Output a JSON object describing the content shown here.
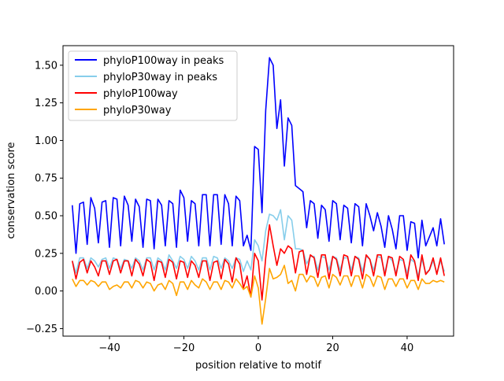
{
  "chart_data": {
    "type": "line",
    "title": "",
    "xlabel": "position relative to motif",
    "ylabel": "conservation score",
    "xlim": [
      -52.5,
      52.5
    ],
    "ylim": [
      -0.3,
      1.63
    ],
    "xticks": [
      -40,
      -20,
      0,
      20,
      40
    ],
    "xtick_labels": [
      "−40",
      "−20",
      "0",
      "20",
      "40"
    ],
    "yticks": [
      -0.25,
      0.0,
      0.25,
      0.5,
      0.75,
      1.0,
      1.25,
      1.5
    ],
    "ytick_labels": [
      "−0.25",
      "0.00",
      "0.25",
      "0.50",
      "0.75",
      "1.00",
      "1.25",
      "1.50"
    ],
    "legend_position": "top-left",
    "x": [
      -50,
      -49,
      -48,
      -47,
      -46,
      -45,
      -44,
      -43,
      -42,
      -41,
      -40,
      -39,
      -38,
      -37,
      -36,
      -35,
      -34,
      -33,
      -32,
      -31,
      -30,
      -29,
      -28,
      -27,
      -26,
      -25,
      -24,
      -23,
      -22,
      -21,
      -20,
      -19,
      -18,
      -17,
      -16,
      -15,
      -14,
      -13,
      -12,
      -11,
      -10,
      -9,
      -8,
      -7,
      -6,
      -5,
      -4,
      -3,
      -2,
      -1,
      0,
      1,
      2,
      3,
      4,
      5,
      6,
      7,
      8,
      9,
      10,
      11,
      12,
      13,
      14,
      15,
      16,
      17,
      18,
      19,
      20,
      21,
      22,
      23,
      24,
      25,
      26,
      27,
      28,
      29,
      30,
      31,
      32,
      33,
      34,
      35,
      36,
      37,
      38,
      39,
      40,
      41,
      42,
      43,
      44,
      45,
      46,
      47,
      48,
      49,
      50
    ],
    "series": [
      {
        "name": "phyloP100way in peaks",
        "color": "#0000ff",
        "values": [
          0.57,
          0.25,
          0.58,
          0.59,
          0.31,
          0.62,
          0.55,
          0.32,
          0.59,
          0.6,
          0.29,
          0.62,
          0.61,
          0.3,
          0.63,
          0.57,
          0.33,
          0.61,
          0.56,
          0.29,
          0.61,
          0.6,
          0.28,
          0.61,
          0.57,
          0.3,
          0.6,
          0.58,
          0.29,
          0.67,
          0.62,
          0.33,
          0.6,
          0.58,
          0.3,
          0.64,
          0.64,
          0.3,
          0.64,
          0.64,
          0.31,
          0.64,
          0.58,
          0.3,
          0.63,
          0.6,
          0.3,
          0.37,
          0.27,
          0.96,
          0.94,
          0.52,
          1.2,
          1.55,
          1.5,
          1.08,
          1.27,
          0.83,
          1.15,
          1.1,
          0.7,
          0.68,
          0.66,
          0.42,
          0.6,
          0.58,
          0.35,
          0.57,
          0.54,
          0.33,
          0.6,
          0.58,
          0.34,
          0.57,
          0.55,
          0.32,
          0.58,
          0.56,
          0.3,
          0.58,
          0.5,
          0.4,
          0.52,
          0.43,
          0.29,
          0.5,
          0.41,
          0.28,
          0.5,
          0.5,
          0.27,
          0.46,
          0.45,
          0.22,
          0.47,
          0.3,
          0.36,
          0.42,
          0.3,
          0.48,
          0.31
        ]
      },
      {
        "name": "phyloP30way in peaks",
        "color": "#87ceeb",
        "values": [
          0.2,
          0.12,
          0.22,
          0.22,
          0.15,
          0.22,
          0.2,
          0.16,
          0.21,
          0.22,
          0.15,
          0.22,
          0.21,
          0.15,
          0.21,
          0.2,
          0.15,
          0.22,
          0.2,
          0.14,
          0.22,
          0.22,
          0.14,
          0.22,
          0.2,
          0.14,
          0.24,
          0.2,
          0.15,
          0.23,
          0.21,
          0.15,
          0.23,
          0.2,
          0.14,
          0.22,
          0.22,
          0.14,
          0.23,
          0.22,
          0.15,
          0.22,
          0.2,
          0.15,
          0.22,
          0.21,
          0.13,
          0.2,
          0.14,
          0.34,
          0.3,
          0.2,
          0.4,
          0.51,
          0.5,
          0.47,
          0.54,
          0.34,
          0.5,
          0.47,
          0.28,
          0.28,
          0.27,
          0.18,
          0.23,
          0.23,
          0.14,
          0.23,
          0.22,
          0.14,
          0.23,
          0.22,
          0.14,
          0.22,
          0.22,
          0.14,
          0.23,
          0.22,
          0.13,
          0.23,
          0.21,
          0.14,
          0.23,
          0.22,
          0.12,
          0.23,
          0.2,
          0.12,
          0.21,
          0.2,
          0.12,
          0.21,
          0.19,
          0.1,
          0.21,
          0.12,
          0.14,
          0.2,
          0.12,
          0.2,
          0.13
        ]
      },
      {
        "name": "phyloP100way",
        "color": "#ff0000",
        "values": [
          0.2,
          0.08,
          0.19,
          0.21,
          0.12,
          0.2,
          0.16,
          0.1,
          0.2,
          0.2,
          0.11,
          0.2,
          0.21,
          0.12,
          0.2,
          0.2,
          0.1,
          0.21,
          0.18,
          0.1,
          0.21,
          0.19,
          0.07,
          0.2,
          0.19,
          0.09,
          0.21,
          0.19,
          0.08,
          0.2,
          0.19,
          0.09,
          0.2,
          0.17,
          0.09,
          0.2,
          0.2,
          0.07,
          0.19,
          0.2,
          0.08,
          0.21,
          0.18,
          0.06,
          0.22,
          0.18,
          0.02,
          0.1,
          -0.04,
          0.25,
          0.2,
          -0.06,
          0.22,
          0.44,
          0.3,
          0.17,
          0.28,
          0.25,
          0.3,
          0.28,
          0.12,
          0.26,
          0.27,
          0.11,
          0.24,
          0.22,
          0.09,
          0.24,
          0.24,
          0.08,
          0.23,
          0.21,
          0.1,
          0.24,
          0.23,
          0.1,
          0.23,
          0.21,
          0.08,
          0.24,
          0.21,
          0.1,
          0.24,
          0.24,
          0.1,
          0.23,
          0.22,
          0.1,
          0.23,
          0.21,
          0.08,
          0.24,
          0.2,
          0.07,
          0.24,
          0.11,
          0.14,
          0.22,
          0.11,
          0.22,
          0.1
        ]
      },
      {
        "name": "phyloP30way",
        "color": "#ffa500",
        "values": [
          0.08,
          0.03,
          0.07,
          0.07,
          0.04,
          0.07,
          0.06,
          0.03,
          0.06,
          0.06,
          0.01,
          0.03,
          0.04,
          0.02,
          0.06,
          0.06,
          0.02,
          0.07,
          0.06,
          0.02,
          0.06,
          0.05,
          0.0,
          0.04,
          0.05,
          0.01,
          0.07,
          0.05,
          -0.03,
          0.06,
          0.06,
          0.01,
          0.07,
          0.04,
          0.02,
          0.08,
          0.06,
          0.01,
          0.06,
          0.06,
          0.01,
          0.07,
          0.06,
          0.02,
          0.08,
          0.05,
          0.01,
          0.03,
          -0.04,
          0.1,
          0.02,
          -0.22,
          -0.05,
          0.15,
          0.08,
          0.09,
          0.11,
          0.17,
          0.05,
          0.07,
          0.0,
          0.11,
          0.11,
          0.06,
          0.1,
          0.09,
          0.03,
          0.09,
          0.1,
          0.02,
          0.11,
          0.09,
          0.04,
          0.1,
          0.1,
          0.03,
          0.1,
          0.1,
          0.02,
          0.11,
          0.09,
          0.03,
          0.1,
          0.09,
          0.01,
          0.08,
          0.08,
          0.03,
          0.08,
          0.08,
          0.02,
          0.07,
          0.07,
          0.01,
          0.08,
          0.05,
          0.05,
          0.07,
          0.06,
          0.07,
          0.06
        ]
      }
    ]
  }
}
